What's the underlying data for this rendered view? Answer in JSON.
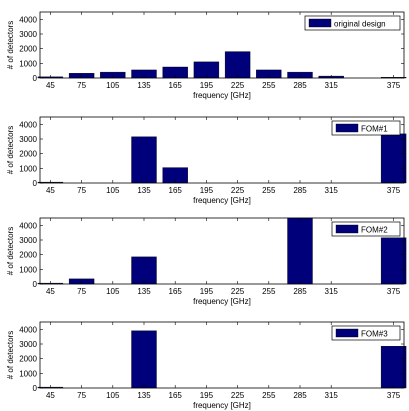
{
  "bar_color": "#00007a",
  "frequency_ticks": [
    "45",
    "75",
    "105",
    "135",
    "165",
    "195",
    "225",
    "255",
    "285",
    "315",
    "375"
  ],
  "chart_data": [
    {
      "type": "bar",
      "legend": "original design",
      "xlabel": "frequency [GHz]",
      "ylabel": "# of detectors",
      "ylim": [
        0,
        4500
      ],
      "yticks": [
        "0",
        "1000",
        "2000",
        "3000",
        "4000"
      ],
      "categories": [
        45,
        75,
        105,
        135,
        165,
        195,
        225,
        255,
        285,
        315,
        375
      ],
      "values": [
        80,
        320,
        400,
        550,
        750,
        1100,
        1800,
        550,
        400,
        130,
        50
      ]
    },
    {
      "type": "bar",
      "legend": "FOM#1",
      "xlabel": "frequency [GHz]",
      "ylabel": "# of detectors",
      "ylim": [
        0,
        4500
      ],
      "yticks": [
        "0",
        "1000",
        "2000",
        "3000",
        "4000"
      ],
      "categories": [
        45,
        75,
        105,
        135,
        165,
        195,
        225,
        255,
        285,
        315,
        375
      ],
      "values": [
        60,
        0,
        0,
        3150,
        1050,
        0,
        0,
        0,
        0,
        0,
        3350
      ]
    },
    {
      "type": "bar",
      "legend": "FOM#2",
      "xlabel": "frequency [GHz]",
      "ylabel": "# of detectors",
      "ylim": [
        0,
        4500
      ],
      "yticks": [
        "0",
        "1000",
        "2000",
        "3000",
        "4000"
      ],
      "categories": [
        45,
        75,
        105,
        135,
        165,
        195,
        225,
        255,
        285,
        315,
        375
      ],
      "values": [
        60,
        350,
        0,
        1850,
        0,
        0,
        0,
        0,
        4600,
        0,
        3150
      ]
    },
    {
      "type": "bar",
      "legend": "FOM#3",
      "xlabel": "frequency [GHz]",
      "ylabel": "# of detectors",
      "ylim": [
        0,
        4500
      ],
      "yticks": [
        "0",
        "1000",
        "2000",
        "3000",
        "4000"
      ],
      "categories": [
        45,
        75,
        105,
        135,
        165,
        195,
        225,
        255,
        285,
        315,
        375
      ],
      "values": [
        60,
        0,
        0,
        3900,
        0,
        0,
        0,
        0,
        0,
        0,
        2850
      ]
    }
  ]
}
